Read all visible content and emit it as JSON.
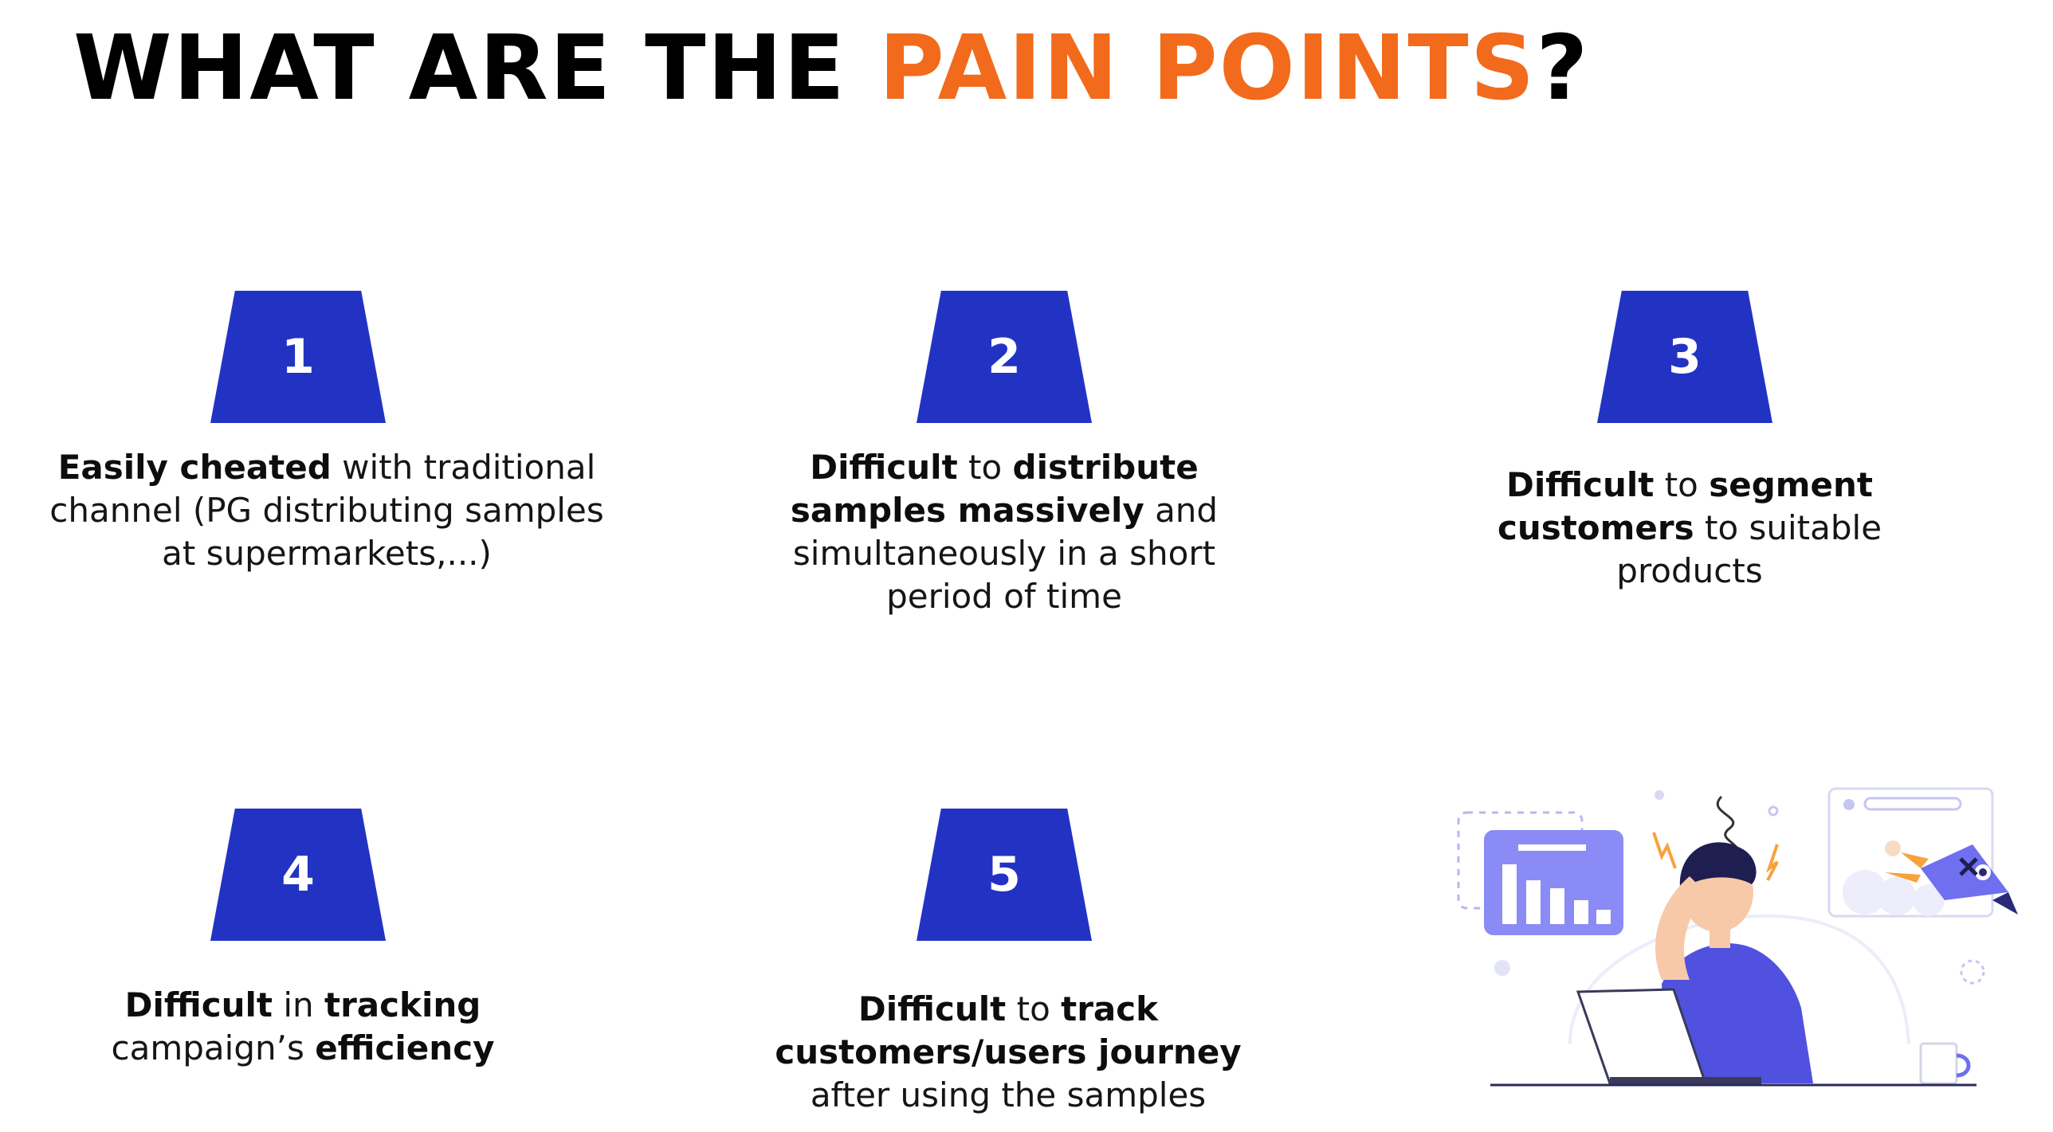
{
  "title": {
    "main": "WHAT ARE THE ",
    "accent": "PAIN POINTS",
    "end": "?"
  },
  "points": [
    {
      "number": "1",
      "segments": [
        {
          "text": "Easily cheated",
          "bold": true
        },
        {
          "text": " with traditional channel (PG distributing samples at supermarkets,...)",
          "bold": false
        }
      ]
    },
    {
      "number": "2",
      "segments": [
        {
          "text": "Difficult",
          "bold": true
        },
        {
          "text": " to ",
          "bold": false
        },
        {
          "text": "distribute samples massively",
          "bold": true
        },
        {
          "text": " and simultaneously in a short period of time",
          "bold": false
        }
      ]
    },
    {
      "number": "3",
      "segments": [
        {
          "text": "Difficult",
          "bold": true
        },
        {
          "text": " to ",
          "bold": false
        },
        {
          "text": "segment customers",
          "bold": true
        },
        {
          "text": " to suitable products",
          "bold": false
        }
      ]
    },
    {
      "number": "4",
      "segments": [
        {
          "text": "Difficult",
          "bold": true
        },
        {
          "text": " in ",
          "bold": false
        },
        {
          "text": "tracking",
          "bold": true
        },
        {
          "text": " campaign’s ",
          "bold": false
        },
        {
          "text": "efficiency",
          "bold": true
        }
      ]
    },
    {
      "number": "5",
      "segments": [
        {
          "text": "Difficult",
          "bold": true
        },
        {
          "text": " to ",
          "bold": false
        },
        {
          "text": "track customers/users journey",
          "bold": true
        },
        {
          "text": " after using the samples",
          "bold": false
        }
      ]
    }
  ],
  "colors": {
    "accent": "#f26a1b",
    "badge": "#2233c4",
    "illustration_purple": "#6f6ff0"
  },
  "illustration": {
    "icon": "stressed-person-at-laptop-illustration"
  }
}
